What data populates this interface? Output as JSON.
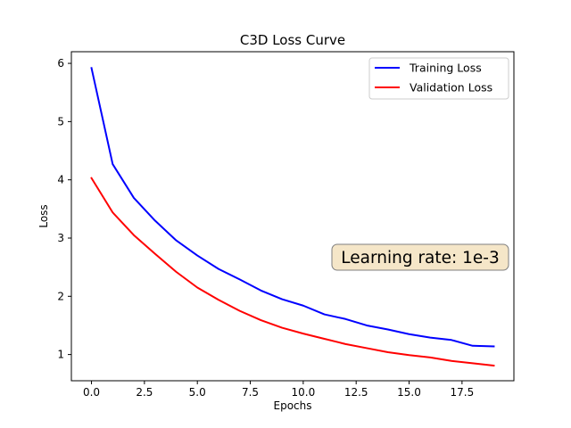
{
  "chart_data": {
    "type": "line",
    "title": "C3D Loss Curve",
    "xlabel": "Epochs",
    "ylabel": "Loss",
    "xlim": [
      -0.95,
      19.95
    ],
    "ylim": [
      0.55,
      6.2
    ],
    "xticks": [
      0,
      2.5,
      5,
      7.5,
      10,
      12.5,
      15,
      17.5
    ],
    "xtick_labels": [
      "0.0",
      "2.5",
      "5.0",
      "7.5",
      "10.0",
      "12.5",
      "15.0",
      "17.5"
    ],
    "yticks": [
      1,
      2,
      3,
      4,
      5,
      6
    ],
    "ytick_labels": [
      "1",
      "2",
      "3",
      "4",
      "5",
      "6"
    ],
    "grid": false,
    "legend_position": "top-right",
    "x": [
      0,
      1,
      2,
      3,
      4,
      5,
      6,
      7,
      8,
      9,
      10,
      11,
      12,
      13,
      14,
      15,
      16,
      17,
      18,
      19
    ],
    "series": [
      {
        "name": "Training Loss",
        "color": "#0000ff",
        "values": [
          5.92,
          4.27,
          3.69,
          3.3,
          2.96,
          2.7,
          2.47,
          2.29,
          2.1,
          1.95,
          1.84,
          1.69,
          1.61,
          1.5,
          1.43,
          1.35,
          1.29,
          1.25,
          1.15,
          1.14
        ]
      },
      {
        "name": "Validation Loss",
        "color": "#ff0000",
        "values": [
          4.03,
          3.44,
          3.05,
          2.73,
          2.42,
          2.15,
          1.94,
          1.75,
          1.59,
          1.46,
          1.36,
          1.27,
          1.18,
          1.11,
          1.04,
          0.99,
          0.95,
          0.89,
          0.85,
          0.81
        ]
      }
    ],
    "annotation": {
      "text": "Learning rate: 1e-3",
      "box_color": "#f5e6c8",
      "border_color": "#7f7f7f"
    }
  }
}
